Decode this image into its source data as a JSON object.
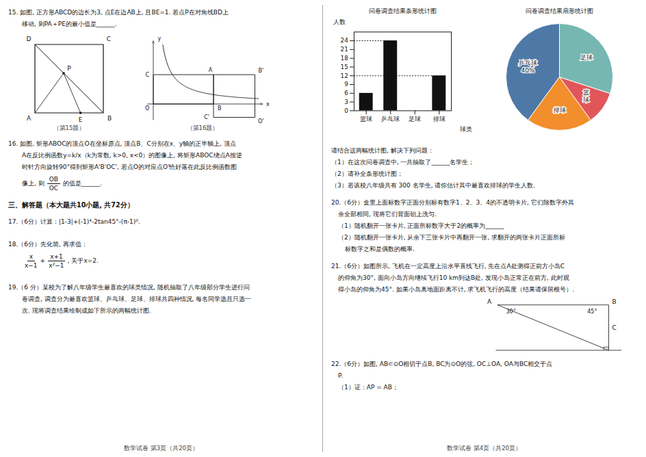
{
  "chart_data": [
    {
      "type": "bar",
      "title": "问卷调查结果条形统计图",
      "categories": [
        "篮球",
        "乒乓球",
        "足球",
        "排球"
      ],
      "values": [
        6,
        24,
        null,
        12
      ],
      "xlabel": "球类",
      "ylabel": "人数",
      "ylim": [
        0,
        27
      ],
      "yticks": [
        0,
        3,
        6,
        9,
        12,
        15,
        18,
        21,
        24
      ],
      "reference_lines": [
        24,
        12
      ],
      "grid": false
    },
    {
      "type": "pie",
      "title": "问卷调查结果扇形统计图",
      "labels": [
        "乒乓球\n40%",
        "排球",
        "篮\n球",
        "足球"
      ],
      "values": [
        40,
        20,
        10,
        30
      ]
    }
  ],
  "annotations": [
    [
      "15. 如图, 正方形ABCD的边长为3, 点E在边AB上, 且BE=1. 若点P在对角线BD上",
      "移动, 则PA＋PE的最小值是______."
    ],
    [
      "D",
      "C",
      "A",
      "E",
      "B",
      "P"
    ],
    [
      "x",
      "y",
      "A",
      "B",
      "C",
      "O",
      "B'",
      "O'",
      "C'"
    ],
    [
      "（第15题）",
      "（第16题）"
    ],
    [
      "16. 如图, 矩形ABOC的顶点O在坐标原点, 顶点B、C分别在x、y轴的正半轴上, 顶点",
      "A在反比例函数y=k/x（k为常数, k>0, x<0）的图像上, 将矩形ABOC绕点A按逆",
      "时针方向旋转90°得到矩形A'B'OC', 若点O的对应点O'恰好落在此反比例函数图",
      "像上, 则"
    ],
    [
      "OB",
      "OC",
      "的值是______."
    ],
    [
      "三、解答题（本大题共10小题, 共72分）"
    ],
    [
      "17.（6分）计算：|1-3|+(-1)⁴-2tan45°-(π-1)⁰."
    ],
    [
      "18.（6分）先化简, 再求值："
    ],
    [
      "x",
      "x−1",
      "+",
      "x+1",
      "x²−1",
      ", 关于x=2."
    ],
    [
      "19.（6 分）某校为了解八年级学生最喜欢的球类情况, 随机抽取了八年级部分学生进行问",
      "卷调查, 调查分为最喜欢篮球、乒乓球、足球、排球共四种情况, 每名同学选且只选一",
      "次. 现将调查结果绘制成如下所示的两幅统计图."
    ],
    [
      "数学试卷   第3页（共20页）"
    ],
    [
      "请结合这两幅统计图, 解决下列问题：",
      "（1）在这次问卷调查中, 一共抽取了______名学生；",
      "（2）请补全条形统计图；",
      "（3）若该校八年级共有 300 名学生, 请你估计其中最喜欢排球的学生人数."
    ],
    [
      "20.（6分）盒里上面标数字正面分别标有数字1、2、3、4的不透明卡片, 它们除数字外其",
      "余全部相同, 现将它们背面朝上洗匀.",
      "（1）随机翻开一张卡片, 正面所标数字大于2的概率为______",
      "（2）随机翻开一张卡片, 从余下三张卡片中再翻开一张, 求翻开的两张卡片正面所标",
      "标数字之和是偶数的概率."
    ],
    [
      "21.（6分）如图所示, 飞机在一定高度上沿水平直线飞行, 先在点A处测得正前方小岛C",
      "的仰角为30°, 面向小岛方向继续飞行10 km到达B处, 发现小岛正常正在前方, 此时观",
      "得小岛的仰角为45°. 如果小岛离地面距离不计, 求飞机飞行的高度（结果请保留根号）."
    ],
    [
      "A",
      "B",
      "C",
      "30°",
      "45°"
    ],
    [
      "22.（6分）如图, AB⊂⊙O相切于点B, BC为⊙O的弦, OC⊥OA, OA与BC相交于点",
      "P.",
      "（1）证：AP = AB；"
    ],
    [
      "数学试卷   第4页（共20页）"
    ]
  ]
}
